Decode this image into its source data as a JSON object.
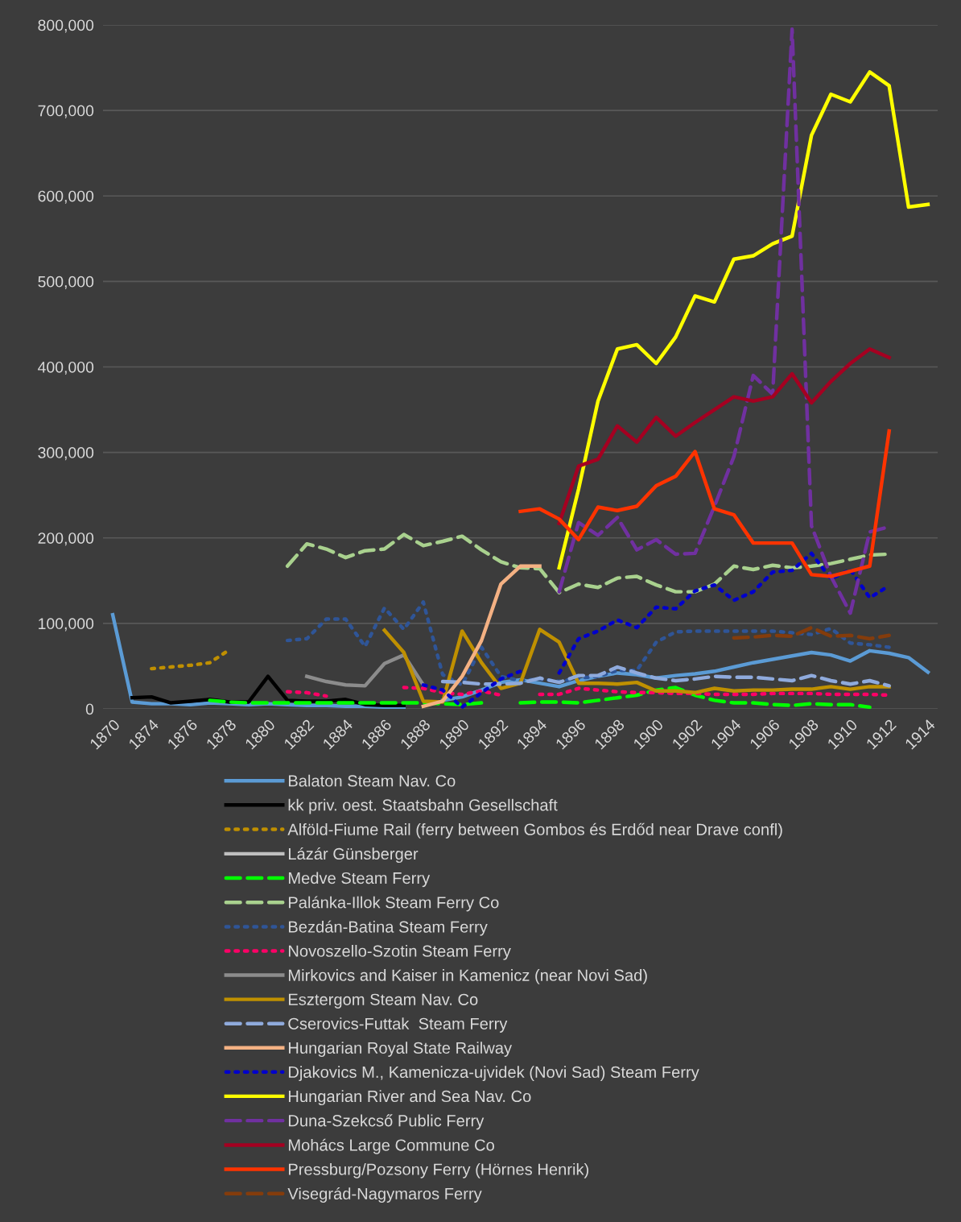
{
  "chart_data": {
    "type": "line",
    "categories": [
      "1870",
      null,
      "1874",
      null,
      "1876",
      null,
      "1878",
      null,
      "1880",
      null,
      "1882",
      null,
      "1884",
      null,
      "1886",
      null,
      "1888",
      null,
      "1890",
      null,
      "1892",
      null,
      "1894",
      null,
      "1896",
      null,
      "1898",
      null,
      "1900",
      null,
      "1902",
      null,
      "1904",
      null,
      "1906",
      null,
      "1908",
      null,
      "1910",
      null,
      "1912",
      null,
      "1914"
    ],
    "ylim": [
      0,
      800000
    ],
    "yticks": [
      0,
      {
        "value": 100000,
        "label": "100,000"
      },
      {
        "value": 200000,
        "label": "200,000"
      },
      {
        "value": 300000,
        "label": "300,000"
      },
      {
        "value": 400000,
        "label": "400,000"
      },
      {
        "value": 500000,
        "label": "500,000"
      },
      {
        "value": 600000,
        "label": "600,000"
      },
      {
        "value": 700000,
        "label": "700,000"
      },
      {
        "value": 800000,
        "label": "800,000"
      }
    ],
    "grid": "y",
    "legend": "bottom",
    "marker": "none",
    "series": [
      {
        "name": "Balaton Steam Nav. Co",
        "color": "#5b9bd5",
        "line_style": "solid",
        "values": [
          110000,
          8000,
          6000,
          6000,
          5000,
          7000,
          6000,
          5000,
          6000,
          5000,
          4000,
          4000,
          3000,
          3000,
          2000,
          2000,
          null,
          10000,
          14000,
          22000,
          31000,
          34000,
          30000,
          26000,
          33000,
          38000,
          42000,
          40000,
          36000,
          39000,
          41000,
          44000,
          49000,
          54000,
          58000,
          62000,
          66000,
          63000,
          56000,
          68000,
          65000,
          60000,
          43000
        ]
      },
      {
        "name": "kk priv. oest. Staatsbahn Gesellschaft",
        "color": "#000000",
        "line_style": "solid",
        "values": [
          null,
          13000,
          14000,
          7000,
          9000,
          11000,
          8000,
          8000,
          38000,
          10000,
          9000,
          9000,
          11000,
          5000,
          4000,
          4000,
          null,
          null,
          null,
          null,
          null,
          null,
          null,
          null,
          null,
          null,
          null,
          null,
          null,
          null,
          null,
          null,
          null,
          null,
          null,
          null,
          null,
          null,
          null,
          null,
          null,
          null,
          null
        ]
      },
      {
        "name": "Alföld-Fiume Rail (ferry between Gombos és Erdőd near Drave confl)",
        "color": "#bf8f00",
        "line_style": "dotted",
        "values": [
          null,
          null,
          47000,
          49000,
          51000,
          54000,
          69000,
          null,
          null,
          null,
          null,
          null,
          null,
          null,
          null,
          null,
          null,
          null,
          null,
          null,
          null,
          null,
          null,
          null,
          null,
          null,
          null,
          null,
          null,
          null,
          null,
          null,
          null,
          null,
          null,
          null,
          null,
          null,
          null,
          null,
          null,
          null,
          null
        ]
      },
      {
        "name": "Lázár Günsberger",
        "color": "#bfbfbf",
        "line_style": "solid",
        "values": [
          null,
          null,
          null,
          null,
          null,
          null,
          null,
          null,
          null,
          null,
          null,
          null,
          null,
          null,
          null,
          null,
          null,
          null,
          null,
          null,
          null,
          null,
          null,
          null,
          null,
          null,
          null,
          null,
          null,
          null,
          null,
          null,
          null,
          null,
          null,
          null,
          null,
          null,
          null,
          null,
          null,
          null,
          null
        ]
      },
      {
        "name": "Medve Steam Ferry",
        "color": "#00ff00",
        "line_style": "dashed",
        "values": [
          null,
          null,
          null,
          null,
          null,
          10000,
          8000,
          7000,
          7000,
          7000,
          7000,
          7000,
          7000,
          7000,
          7000,
          7000,
          7000,
          6000,
          5000,
          7000,
          null,
          7000,
          8000,
          8000,
          7000,
          10000,
          13000,
          16000,
          22000,
          25000,
          16000,
          10000,
          7000,
          7000,
          5000,
          4000,
          6000,
          5000,
          5000,
          2000,
          null,
          null,
          null
        ]
      },
      {
        "name": "Palánka-Illok Steam Ferry Co",
        "color": "#a9d18e",
        "line_style": "dashed",
        "values": [
          null,
          null,
          null,
          null,
          null,
          null,
          null,
          null,
          null,
          167000,
          193000,
          187000,
          177000,
          185000,
          187000,
          204000,
          191000,
          196000,
          202000,
          186000,
          172000,
          165000,
          164000,
          136000,
          146000,
          142000,
          153000,
          155000,
          145000,
          137000,
          137000,
          146000,
          167000,
          163000,
          168000,
          165000,
          167000,
          170000,
          175000,
          180000,
          181000,
          null,
          null
        ]
      },
      {
        "name": "Bezdán-Batina Steam Ferry",
        "color": "#2f5597",
        "line_style": "dotted",
        "values": [
          null,
          null,
          null,
          null,
          null,
          null,
          null,
          null,
          null,
          80000,
          82000,
          105000,
          105000,
          73000,
          118000,
          93000,
          125000,
          40000,
          28000,
          72000,
          38000,
          33000,
          35000,
          32000,
          36000,
          38000,
          45000,
          45000,
          78000,
          90000,
          91000,
          91000,
          91000,
          91000,
          91000,
          89000,
          87000,
          94000,
          77000,
          75000,
          72000,
          null,
          null
        ]
      },
      {
        "name": "Novoszello-Szotin Steam Ferry",
        "color": "#ff0066",
        "line_style": "dotted",
        "values": [
          null,
          null,
          null,
          null,
          null,
          null,
          null,
          null,
          null,
          20000,
          19000,
          15000,
          null,
          null,
          null,
          25000,
          24000,
          19000,
          17000,
          21000,
          16000,
          null,
          17000,
          17000,
          24000,
          22000,
          20000,
          19000,
          19000,
          18000,
          18000,
          17000,
          17000,
          17000,
          18000,
          18000,
          18000,
          17000,
          17000,
          17000,
          16000,
          null,
          null
        ]
      },
      {
        "name": "Mirkovics and Kaiser in Kamenicz (near Novi Sad)",
        "color": "#8c8c8c",
        "line_style": "solid",
        "values": [
          null,
          null,
          null,
          null,
          null,
          null,
          null,
          null,
          null,
          null,
          38000,
          32000,
          28000,
          27000,
          53000,
          63000,
          28000,
          null,
          null,
          null,
          null,
          null,
          null,
          null,
          null,
          null,
          null,
          null,
          null,
          null,
          null,
          null,
          null,
          null,
          null,
          null,
          null,
          null,
          null,
          null,
          null,
          null,
          null
        ]
      },
      {
        "name": "Esztergom Steam Nav. Co",
        "color": "#bf9000",
        "line_style": "solid",
        "values": [
          null,
          null,
          null,
          null,
          null,
          null,
          null,
          null,
          null,
          null,
          null,
          null,
          null,
          null,
          92000,
          66000,
          9000,
          8000,
          91000,
          54000,
          24000,
          30000,
          93000,
          78000,
          30000,
          30000,
          29000,
          31000,
          21000,
          21000,
          19000,
          24000,
          21000,
          22000,
          22000,
          23000,
          23000,
          26000,
          23000,
          26000,
          26000,
          null,
          null
        ]
      },
      {
        "name": "Cserovics-Futtak  Steam Ferry",
        "color": "#8faadc",
        "line_style": "dashed",
        "values": [
          null,
          null,
          null,
          null,
          null,
          null,
          null,
          null,
          null,
          null,
          null,
          null,
          null,
          null,
          null,
          null,
          null,
          32000,
          31000,
          29000,
          29000,
          30000,
          36000,
          31000,
          39000,
          39000,
          49000,
          42000,
          36000,
          33000,
          35000,
          38000,
          37000,
          37000,
          35000,
          33000,
          39000,
          33000,
          29000,
          33000,
          27000,
          null,
          null
        ]
      },
      {
        "name": "Hungarian Royal State Railway",
        "color": "#f4b183",
        "line_style": "solid",
        "values": [
          null,
          null,
          null,
          null,
          null,
          null,
          null,
          null,
          null,
          null,
          null,
          null,
          null,
          null,
          null,
          null,
          3000,
          9000,
          38000,
          80000,
          146000,
          167000,
          167000,
          null,
          null,
          null,
          null,
          null,
          null,
          null,
          null,
          null,
          null,
          null,
          null,
          null,
          null,
          null,
          null,
          null,
          null,
          null,
          null
        ]
      },
      {
        "name": "Djakovics M., Kamenicza-ujvidek (Novi Sad) Steam Ferry",
        "color": "#0000cc",
        "line_style": "dotted",
        "values": [
          null,
          null,
          null,
          null,
          null,
          null,
          null,
          null,
          null,
          null,
          null,
          null,
          null,
          null,
          null,
          null,
          28000,
          22000,
          2000,
          19000,
          35000,
          44000,
          null,
          42000,
          82000,
          91000,
          104000,
          95000,
          119000,
          117000,
          138000,
          145000,
          127000,
          137000,
          160000,
          162000,
          182000,
          152000,
          163000,
          130000,
          144000,
          null,
          null
        ]
      },
      {
        "name": "Hungarian River and Sea Nav. Co",
        "color": "#ffff00",
        "line_style": "solid",
        "values": [
          null,
          null,
          null,
          null,
          null,
          null,
          null,
          null,
          null,
          null,
          null,
          null,
          null,
          null,
          null,
          null,
          null,
          null,
          null,
          null,
          null,
          null,
          null,
          165000,
          257000,
          360000,
          421000,
          426000,
          404000,
          435000,
          483000,
          476000,
          526000,
          530000,
          544000,
          553000,
          671000,
          719000,
          710000,
          745000,
          729000,
          587000,
          590000
        ]
      },
      {
        "name": "Duna-Szekcső Public Ferry",
        "color": "#7030a0",
        "line_style": "dashed",
        "values": [
          null,
          null,
          null,
          null,
          null,
          null,
          null,
          null,
          null,
          null,
          null,
          null,
          null,
          null,
          null,
          null,
          null,
          null,
          null,
          null,
          null,
          null,
          null,
          137000,
          218000,
          203000,
          224000,
          186000,
          198000,
          181000,
          182000,
          237000,
          295000,
          390000,
          368000,
          795000,
          214000,
          155000,
          112000,
          207000,
          213000,
          null,
          null
        ]
      },
      {
        "name": "Mohács Large Commune Co",
        "color": "#a50021",
        "line_style": "solid",
        "values": [
          null,
          null,
          null,
          null,
          null,
          null,
          null,
          null,
          null,
          null,
          null,
          null,
          null,
          null,
          null,
          null,
          null,
          null,
          null,
          null,
          null,
          null,
          null,
          217000,
          284000,
          292000,
          331000,
          312000,
          341000,
          319000,
          335000,
          350000,
          365000,
          360000,
          365000,
          392000,
          358000,
          383000,
          404000,
          421000,
          411000,
          null,
          null
        ]
      },
      {
        "name": "Pressburg/Pozsony Ferry (Hörnes Henrik)",
        "color": "#ff3300",
        "line_style": "solid",
        "values": [
          null,
          null,
          null,
          null,
          null,
          null,
          null,
          null,
          null,
          null,
          null,
          null,
          null,
          null,
          null,
          null,
          null,
          null,
          null,
          null,
          null,
          231000,
          234000,
          222000,
          198000,
          236000,
          232000,
          237000,
          261000,
          272000,
          301000,
          234000,
          227000,
          194000,
          194000,
          194000,
          157000,
          155000,
          161000,
          167000,
          325000,
          null,
          null
        ]
      },
      {
        "name": "Visegrád-Nagymaros Ferry",
        "color": "#843c0c",
        "line_style": "dashed",
        "values": [
          null,
          null,
          null,
          null,
          null,
          null,
          null,
          null,
          null,
          null,
          null,
          null,
          null,
          null,
          null,
          null,
          null,
          null,
          null,
          null,
          null,
          null,
          null,
          null,
          null,
          null,
          null,
          null,
          null,
          null,
          null,
          null,
          83000,
          84000,
          86000,
          85000,
          95000,
          85000,
          86000,
          82000,
          86000,
          null,
          null
        ]
      }
    ]
  }
}
